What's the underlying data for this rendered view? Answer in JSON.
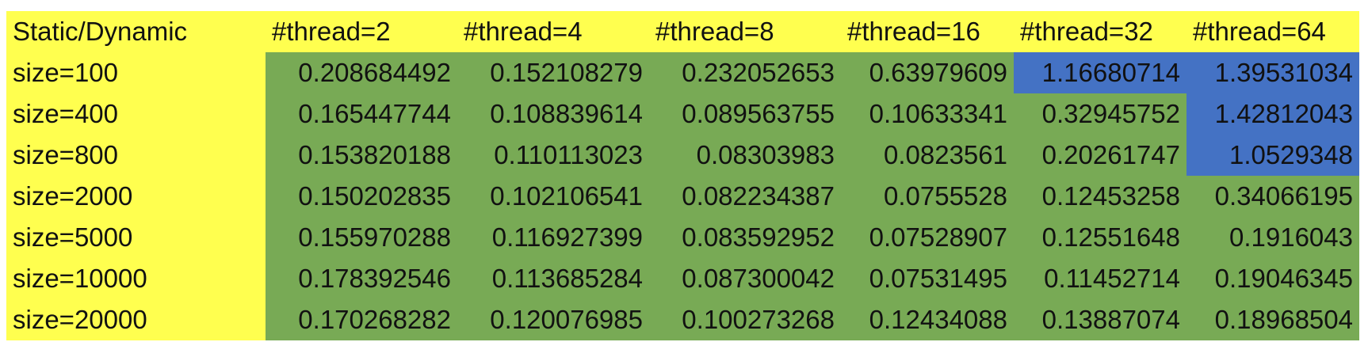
{
  "table": {
    "corner_label": "Static/Dynamic",
    "headers": [
      "#thread=2",
      "#thread=4",
      "#thread=8",
      "#thread=16",
      "#thread=32",
      "#thread=64"
    ],
    "rows": [
      {
        "label": "size=100",
        "values": [
          "0.208684492",
          "0.152108279",
          "0.232052653",
          "0.63979609",
          "1.16680714",
          "1.39531034"
        ]
      },
      {
        "label": "size=400",
        "values": [
          "0.165447744",
          "0.108839614",
          "0.089563755",
          "0.10633341",
          "0.32945752",
          "1.42812043"
        ]
      },
      {
        "label": "size=800",
        "values": [
          "0.153820188",
          "0.110113023",
          "0.08303983",
          "0.0823561",
          "0.20261747",
          "1.0529348"
        ]
      },
      {
        "label": "size=2000",
        "values": [
          "0.150202835",
          "0.102106541",
          "0.082234387",
          "0.0755528",
          "0.12453258",
          "0.34066195"
        ]
      },
      {
        "label": "size=5000",
        "values": [
          "0.155970288",
          "0.116927399",
          "0.083592952",
          "0.07528907",
          "0.12551648",
          "0.1916043"
        ]
      },
      {
        "label": "size=10000",
        "values": [
          "0.178392546",
          "0.113685284",
          "0.087300042",
          "0.07531495",
          "0.11452714",
          "0.19046345"
        ]
      },
      {
        "label": "size=20000",
        "values": [
          "0.170268282",
          "0.120076985",
          "0.100273268",
          "0.12434088",
          "0.13887074",
          "0.18968504"
        ]
      }
    ],
    "highlight": [
      [
        "green",
        "green",
        "green",
        "green",
        "blue",
        "blue"
      ],
      [
        "green",
        "green",
        "green",
        "green",
        "green",
        "blue"
      ],
      [
        "green",
        "green",
        "green",
        "green",
        "green",
        "blue"
      ],
      [
        "green",
        "green",
        "green",
        "green",
        "green",
        "green"
      ],
      [
        "green",
        "green",
        "green",
        "green",
        "green",
        "green"
      ],
      [
        "green",
        "green",
        "green",
        "green",
        "green",
        "green"
      ],
      [
        "green",
        "green",
        "green",
        "green",
        "green",
        "green"
      ]
    ]
  },
  "colors": {
    "header_fill": "#ffff4f",
    "green_fill": "#78aa55",
    "blue_fill": "#4472c4"
  }
}
